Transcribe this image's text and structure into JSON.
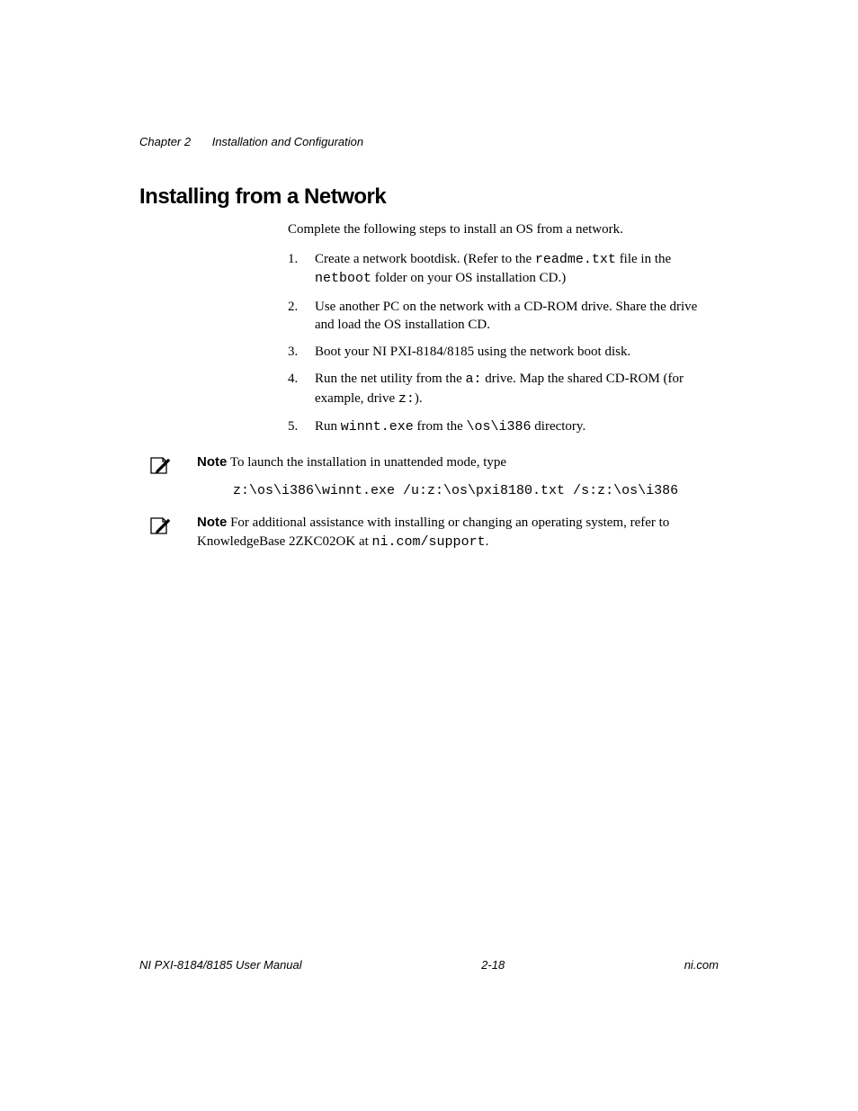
{
  "header": {
    "chapter": "Chapter 2",
    "title": "Installation and Configuration"
  },
  "section_title": "Installing from a Network",
  "intro": "Complete the following steps to install an OS from a network.",
  "steps": [
    {
      "num": "1.",
      "parts": [
        {
          "t": "Create a network bootdisk. (Refer to the "
        },
        {
          "t": "readme.txt",
          "mono": true
        },
        {
          "t": " file in the "
        },
        {
          "t": "netboot",
          "mono": true
        },
        {
          "t": " folder on your OS installation CD.)"
        }
      ]
    },
    {
      "num": "2.",
      "parts": [
        {
          "t": "Use another PC on the network with a CD-ROM drive. Share the drive and load the OS installation CD."
        }
      ]
    },
    {
      "num": "3.",
      "parts": [
        {
          "t": "Boot your NI PXI-8184/8185 using the network boot disk."
        }
      ]
    },
    {
      "num": "4.",
      "parts": [
        {
          "t": "Run the net utility from the "
        },
        {
          "t": "a:",
          "mono": true
        },
        {
          "t": " drive. Map the shared CD-ROM (for example, drive "
        },
        {
          "t": "z:",
          "mono": true
        },
        {
          "t": ")."
        }
      ]
    },
    {
      "num": "5.",
      "parts": [
        {
          "t": "Run "
        },
        {
          "t": "winnt.exe",
          "mono": true
        },
        {
          "t": " from the "
        },
        {
          "t": "\\os\\i386",
          "mono": true
        },
        {
          "t": " directory."
        }
      ]
    }
  ],
  "notes": [
    {
      "label": "Note",
      "intro": "To launch the installation in unattended mode, type",
      "code": "z:\\os\\i386\\winnt.exe /u:z:\\os\\pxi8180.txt /s:z:\\os\\i386"
    },
    {
      "label": "Note",
      "parts": [
        {
          "t": "For additional assistance with installing or changing an operating system, refer to KnowledgeBase 2ZKC02OK at "
        },
        {
          "t": "ni.com/support",
          "mono": true
        },
        {
          "t": "."
        }
      ]
    }
  ],
  "footer": {
    "left": "NI PXI-8184/8185 User Manual",
    "center": "2-18",
    "right": "ni.com"
  }
}
